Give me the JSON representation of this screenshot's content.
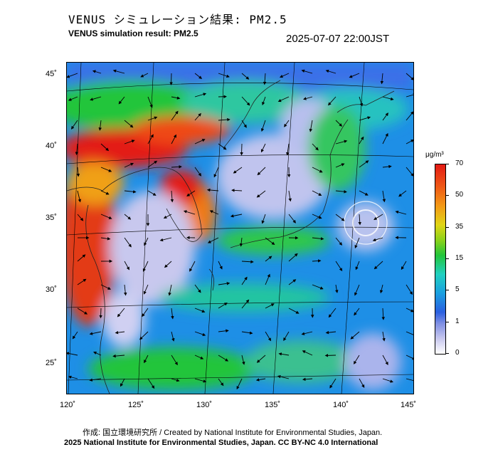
{
  "header": {
    "title_jp": "VENUS シミュレーション結果: PM2.5",
    "title_en": "VENUS simulation result: PM2.5",
    "timestamp": "2025-07-07 22:00JST"
  },
  "map": {
    "lat_labels": [
      "45˚",
      "40˚",
      "35˚",
      "30˚",
      "25˚"
    ],
    "lon_labels": [
      "120˚",
      "125˚",
      "130˚",
      "135˚",
      "140˚",
      "145˚"
    ],
    "colors": {
      "high": "#e31a14",
      "orange": "#f39a16",
      "green": "#22c53a",
      "cyan": "#21d0c0",
      "blue": "#1a6fe0",
      "pale": "#c8c8ee"
    }
  },
  "colorbar": {
    "unit": "μg/m³",
    "ticks": [
      "70",
      "50",
      "35",
      "15",
      "5",
      "1",
      "0"
    ],
    "ticks_values": [
      70,
      50,
      35,
      15,
      5,
      1,
      0
    ]
  },
  "footer": {
    "credit": "作成: 国立環境研究所 / Created by National Institute for Environmental Studies, Japan.",
    "copyright": "2025 National Institute for Environmental Studies, Japan. CC BY-NC 4.0 International"
  }
}
